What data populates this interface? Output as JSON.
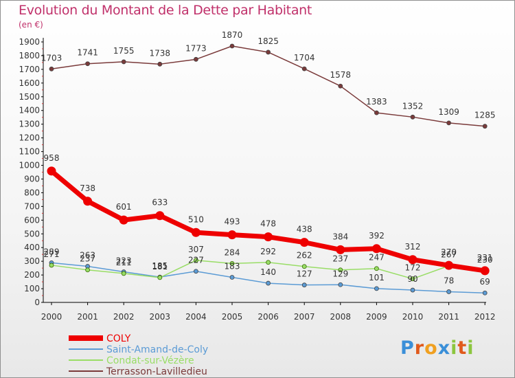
{
  "chart_data": {
    "type": "line",
    "title": "Evolution du Montant de la Dette par Habitant",
    "subtitle": "(en €)",
    "x": [
      "2000",
      "2001",
      "2002",
      "2003",
      "2004",
      "2005",
      "2006",
      "2007",
      "2008",
      "2009",
      "2010",
      "2011",
      "2012"
    ],
    "ylim": [
      0,
      1900
    ],
    "yticks": [
      0,
      100,
      200,
      300,
      400,
      500,
      600,
      700,
      800,
      900,
      1000,
      1100,
      1200,
      1300,
      1400,
      1500,
      1600,
      1700,
      1800,
      1900
    ],
    "grid": false,
    "legend_position": "bottom-left",
    "series": [
      {
        "name": "COLY",
        "color": "#ee0000",
        "values": [
          958,
          738,
          601,
          633,
          510,
          493,
          478,
          438,
          384,
          392,
          312,
          270,
          231
        ]
      },
      {
        "name": "Saint-Amand-de-Coly",
        "color": "#5b9bd5",
        "values": [
          289,
          263,
          223,
          185,
          227,
          183,
          140,
          127,
          129,
          101,
          90,
          78,
          69
        ]
      },
      {
        "name": "Condat-sur-Vézère",
        "color": "#99dd66",
        "values": [
          271,
          237,
          211,
          181,
          307,
          284,
          292,
          262,
          237,
          247,
          172,
          267,
          230
        ]
      },
      {
        "name": "Terrasson-Lavilledieu",
        "color": "#7a3a3a",
        "values": [
          1703,
          1741,
          1755,
          1738,
          1773,
          1870,
          1825,
          1704,
          1578,
          1383,
          1352,
          1309,
          1285
        ]
      }
    ]
  },
  "logo": {
    "text": "Proxiti",
    "letters": [
      "P",
      "r",
      "o",
      "x",
      "i",
      "t",
      "i"
    ]
  }
}
